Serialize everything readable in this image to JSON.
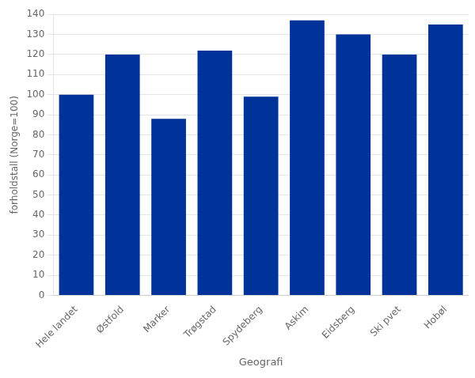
{
  "chart_data": {
    "type": "bar",
    "categories": [
      "Hele landet",
      "Østfold",
      "Marker",
      "Trøgstad",
      "Spydeberg",
      "Askim",
      "Eidsberg",
      "Ski pvet",
      "Hobøl"
    ],
    "values": [
      100,
      120,
      88,
      122,
      99,
      137,
      130,
      120,
      135
    ],
    "color": "#003399",
    "xlabel": "Geografi",
    "ylabel": "forholdstall (Norge=100)",
    "ylim": [
      0,
      140
    ],
    "yticks": [
      0,
      10,
      20,
      30,
      40,
      50,
      60,
      70,
      80,
      90,
      100,
      110,
      120,
      130,
      140
    ],
    "grid": true
  }
}
